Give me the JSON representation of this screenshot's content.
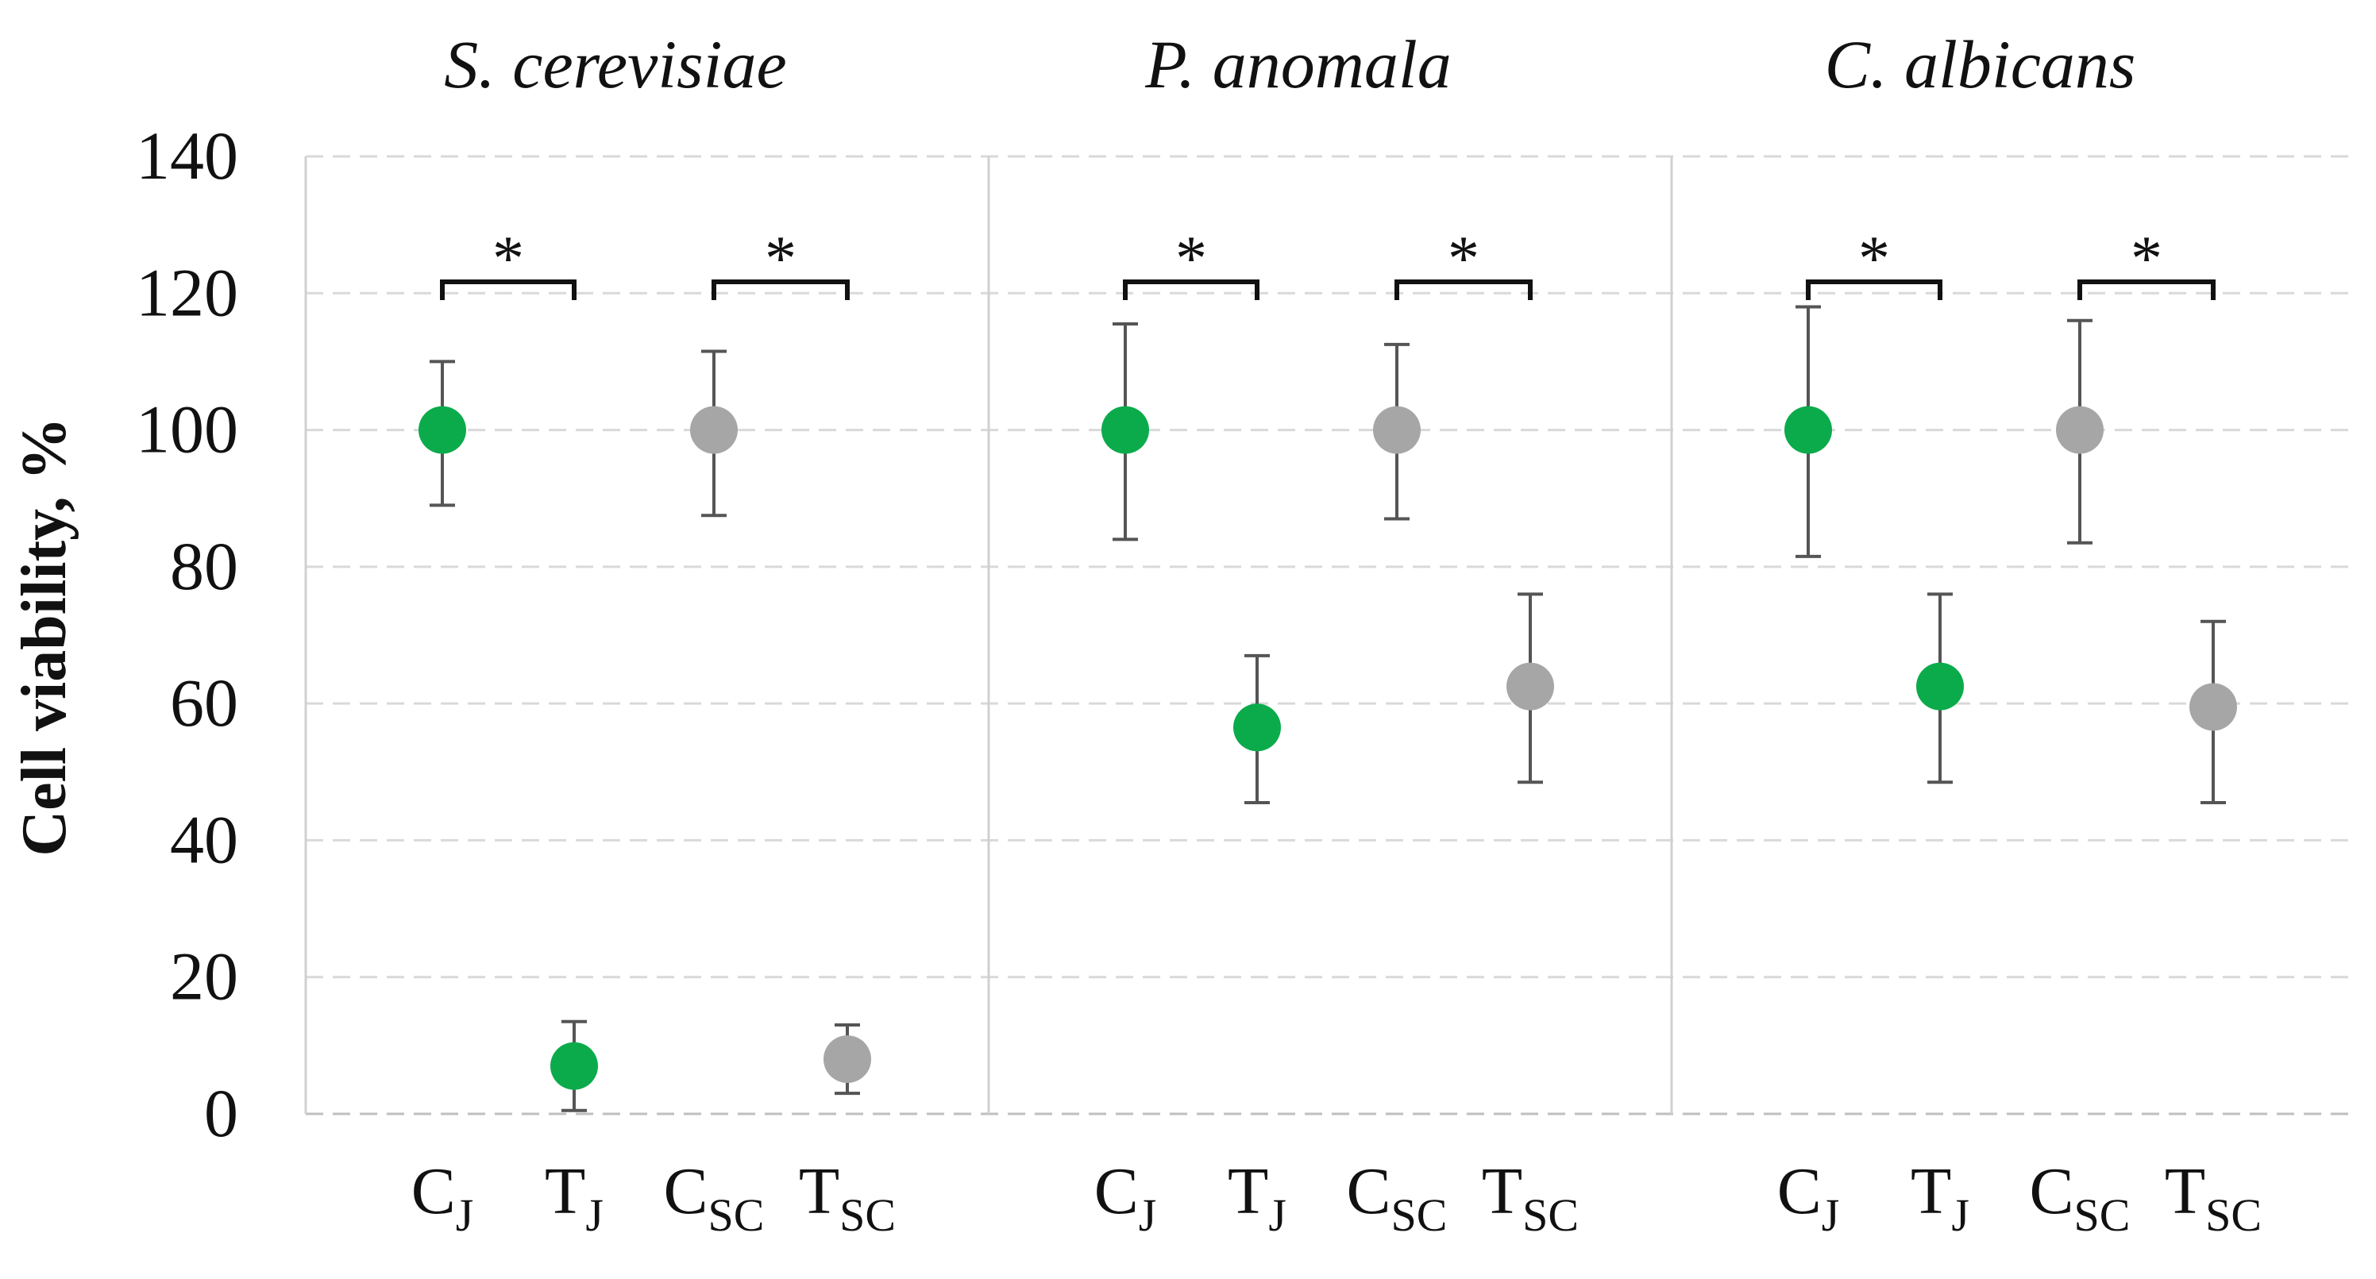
{
  "chart_data": {
    "type": "scatter",
    "ylabel": "Cell viability, %",
    "ylim": [
      0,
      140
    ],
    "yticks": [
      "0",
      "20",
      "40",
      "60",
      "80",
      "100",
      "120",
      "140"
    ],
    "grid": true,
    "significance_marker": "*",
    "colors": {
      "J": "#0bab4b",
      "SC": "#a6a6a6"
    },
    "panels": [
      {
        "title": "S. cerevisiae",
        "points": [
          {
            "base": "C",
            "sub": "J",
            "value": 100,
            "err_low": 89,
            "err_high": 110,
            "color": "#0bab4b"
          },
          {
            "base": "T",
            "sub": "J",
            "value": 7,
            "err_low": 0.5,
            "err_high": 13.5,
            "color": "#0bab4b"
          },
          {
            "base": "C",
            "sub": "SC",
            "value": 100,
            "err_low": 87.5,
            "err_high": 111.5,
            "color": "#a6a6a6"
          },
          {
            "base": "T",
            "sub": "SC",
            "value": 8,
            "err_low": 3,
            "err_high": 13,
            "color": "#a6a6a6"
          }
        ],
        "brackets": [
          [
            0,
            1
          ],
          [
            2,
            3
          ]
        ]
      },
      {
        "title": "P. anomala",
        "points": [
          {
            "base": "C",
            "sub": "J",
            "value": 100,
            "err_low": 84,
            "err_high": 115.5,
            "color": "#0bab4b"
          },
          {
            "base": "T",
            "sub": "J",
            "value": 56.5,
            "err_low": 45.5,
            "err_high": 67,
            "color": "#0bab4b"
          },
          {
            "base": "C",
            "sub": "SC",
            "value": 100,
            "err_low": 87,
            "err_high": 112.5,
            "color": "#a6a6a6"
          },
          {
            "base": "T",
            "sub": "SC",
            "value": 62.5,
            "err_low": 48.5,
            "err_high": 76,
            "color": "#a6a6a6"
          }
        ],
        "brackets": [
          [
            0,
            1
          ],
          [
            2,
            3
          ]
        ]
      },
      {
        "title": "C. albicans",
        "points": [
          {
            "base": "C",
            "sub": "J",
            "value": 100,
            "err_low": 81.5,
            "err_high": 118,
            "color": "#0bab4b"
          },
          {
            "base": "T",
            "sub": "J",
            "value": 62.5,
            "err_low": 48.5,
            "err_high": 76,
            "color": "#0bab4b"
          },
          {
            "base": "C",
            "sub": "SC",
            "value": 100,
            "err_low": 83.5,
            "err_high": 116,
            "color": "#a6a6a6"
          },
          {
            "base": "T",
            "sub": "SC",
            "value": 59.5,
            "err_low": 45.5,
            "err_high": 72,
            "color": "#a6a6a6"
          }
        ],
        "brackets": [
          [
            0,
            1
          ],
          [
            2,
            3
          ]
        ]
      }
    ]
  }
}
